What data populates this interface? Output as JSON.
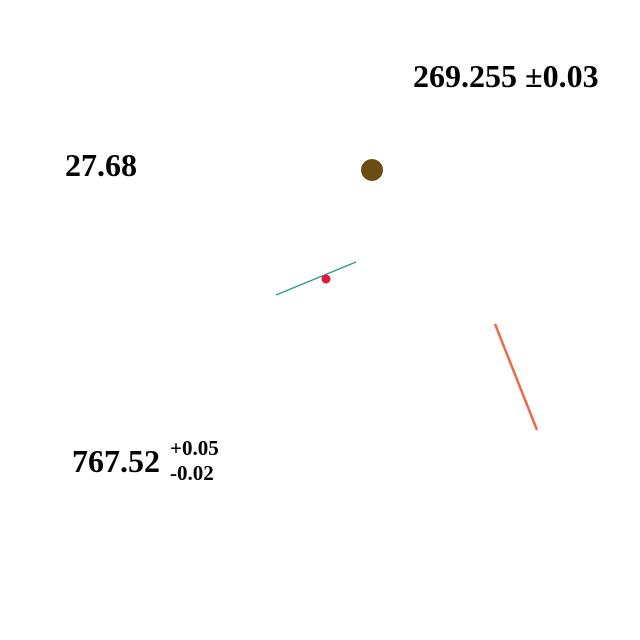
{
  "labels": {
    "top_right": "269.255 ±0.03",
    "left": "27.68",
    "bottom": {
      "value": "767.52",
      "plus": "+0.05",
      "minus": "-0.02"
    }
  },
  "colors": {
    "brown_dot": "#6b4c12",
    "red_dot": "#e0193d",
    "teal_line": "#2a9c86",
    "orange_line": "#ee6a45"
  }
}
